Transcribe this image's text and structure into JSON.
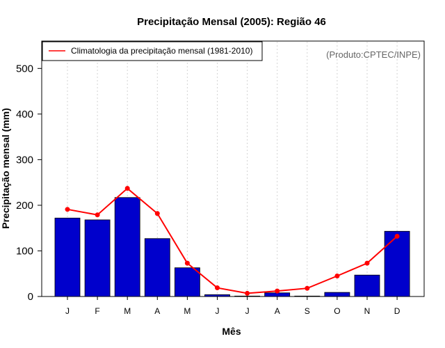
{
  "chart_data": {
    "type": "bar",
    "title": "Precipitação Mensal (2005): Região 46",
    "xlabel": "Mês",
    "ylabel": "Precipitação mensal (mm)",
    "ylim": [
      0,
      560
    ],
    "yticks": [
      0,
      100,
      200,
      300,
      400,
      500
    ],
    "categories": [
      "J",
      "F",
      "M",
      "A",
      "M",
      "J",
      "J",
      "A",
      "S",
      "O",
      "N",
      "D"
    ],
    "series": [
      {
        "name": "Precipitação mensal 2005",
        "kind": "bar",
        "color": "#0000cc",
        "values": [
          172,
          168,
          217,
          127,
          63,
          4,
          1,
          8,
          1,
          9,
          47,
          143
        ]
      },
      {
        "name": "Climatologia da precipitação mensal (1981-2010)",
        "kind": "line",
        "color": "#ff0000",
        "values": [
          191,
          179,
          237,
          182,
          73,
          19,
          7,
          12,
          18,
          45,
          73,
          132
        ]
      }
    ],
    "legend": {
      "position": "top-left",
      "entries": [
        "Climatologia da precipitação mensal (1981-2010)"
      ]
    },
    "grid": "vertical-dotted",
    "credit": "(Produto:CPTEC/INPE)"
  }
}
